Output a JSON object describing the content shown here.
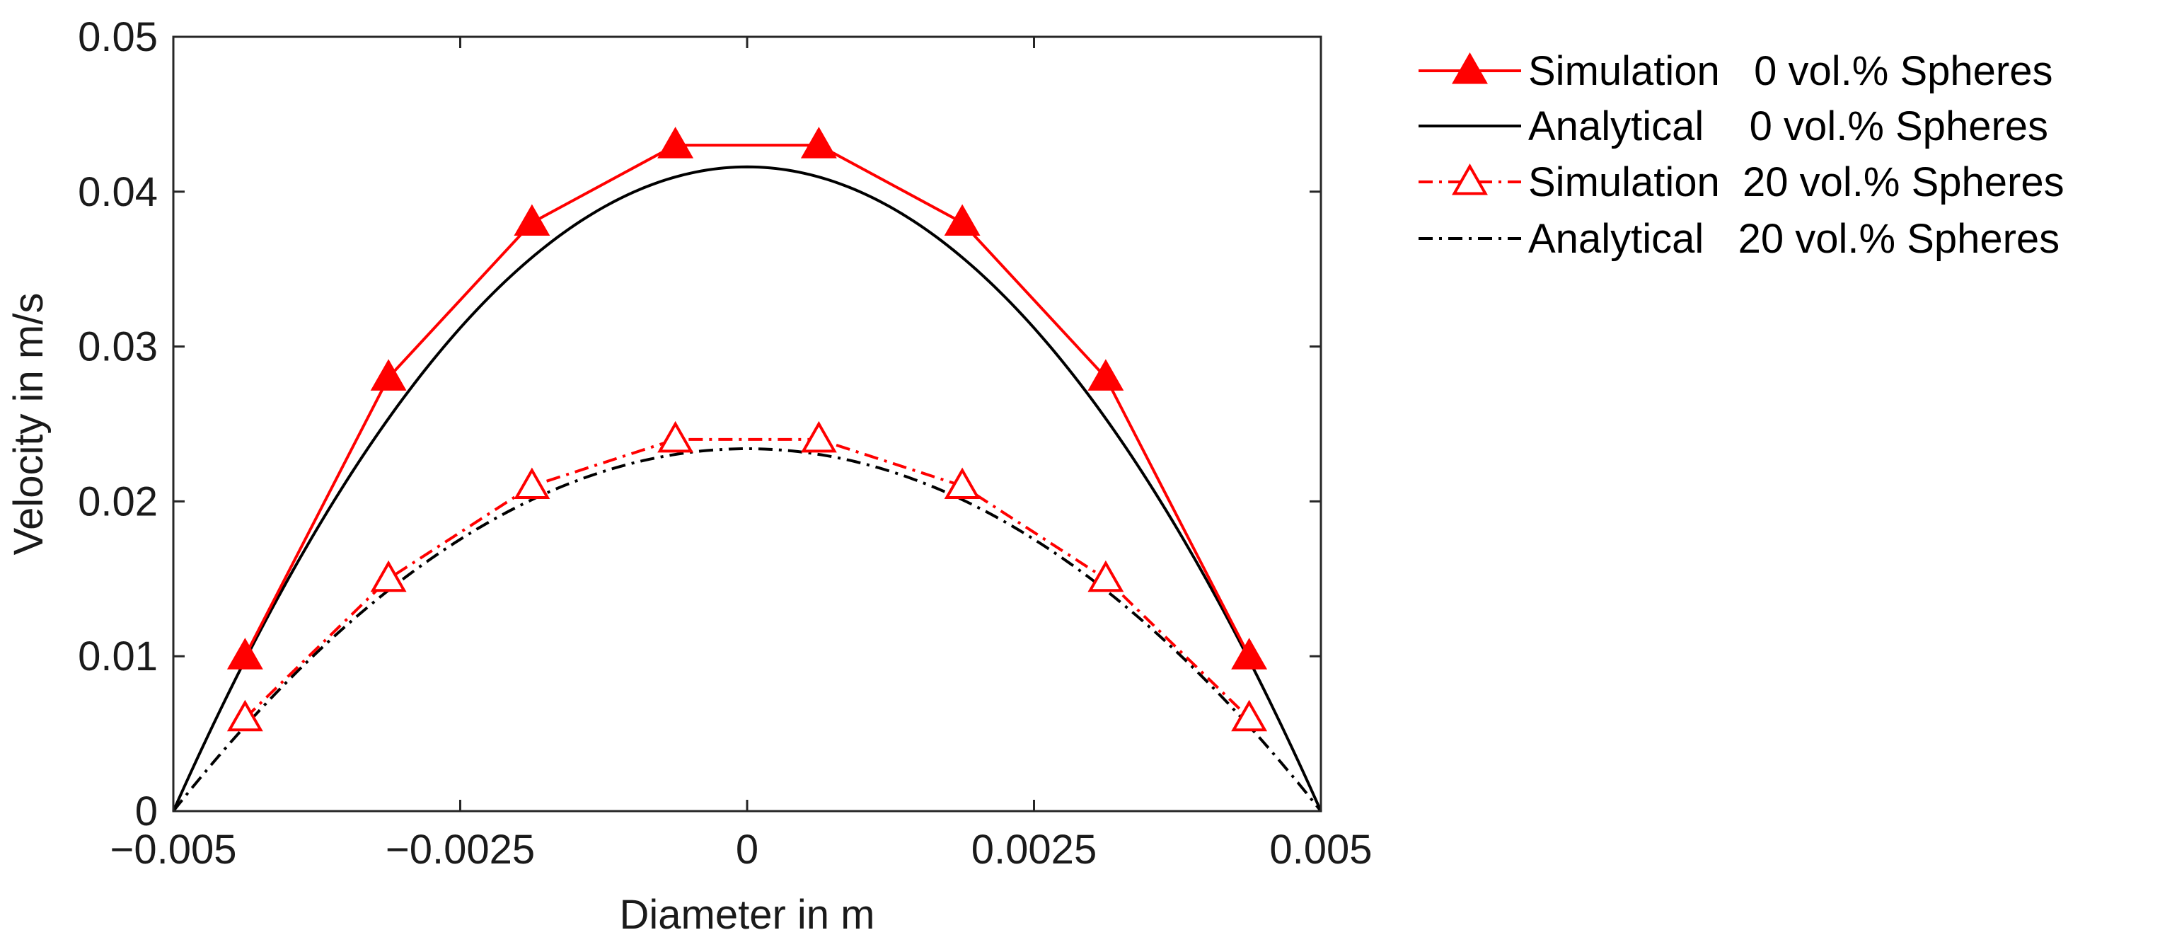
{
  "chart_data": {
    "type": "line",
    "title": "",
    "xlabel": "Diameter in m",
    "ylabel": "Velocity in m/s",
    "xlim": [
      -0.005,
      0.005
    ],
    "ylim": [
      0,
      0.05
    ],
    "xticks": [
      -0.005,
      -0.0025,
      0,
      0.0025,
      0.005
    ],
    "xtick_labels": [
      "−0.005",
      "−0.0025",
      "0",
      "0.0025",
      "0.005"
    ],
    "yticks": [
      0,
      0.01,
      0.02,
      0.03,
      0.04,
      0.05
    ],
    "ytick_labels": [
      "0",
      "0.01",
      "0.02",
      "0.03",
      "0.04",
      "0.05"
    ],
    "grid": false,
    "legend_position": "outside-right",
    "series": [
      {
        "name": "Simulation   0 vol.% Spheres",
        "kind": "markers-line",
        "color": "#ff0000",
        "line_style": "solid",
        "marker": "triangle-filled",
        "x": [
          -0.004375,
          -0.003125,
          -0.001875,
          -0.000625,
          0.000625,
          0.001875,
          0.003125,
          0.004375
        ],
        "y": [
          0.01,
          0.028,
          0.038,
          0.043,
          0.043,
          0.038,
          0.028,
          0.01
        ]
      },
      {
        "name": "Analytical    0 vol.% Spheres",
        "kind": "parabola",
        "color": "#000000",
        "line_style": "solid",
        "marker": "none",
        "x_range": [
          -0.005,
          0.005
        ],
        "peak": 0.0416
      },
      {
        "name": "Simulation  20 vol.% Spheres",
        "kind": "markers-line",
        "color": "#ff0000",
        "line_style": "dashdot",
        "marker": "triangle-open",
        "x": [
          -0.004375,
          -0.003125,
          -0.001875,
          -0.000625,
          0.000625,
          0.001875,
          0.003125,
          0.004375
        ],
        "y": [
          0.006,
          0.015,
          0.021,
          0.024,
          0.024,
          0.021,
          0.015,
          0.006
        ]
      },
      {
        "name": "Analytical   20 vol.% Spheres",
        "kind": "parabola",
        "color": "#000000",
        "line_style": "dashdot",
        "marker": "none",
        "x_range": [
          -0.005,
          0.005
        ],
        "peak": 0.0234
      }
    ]
  }
}
